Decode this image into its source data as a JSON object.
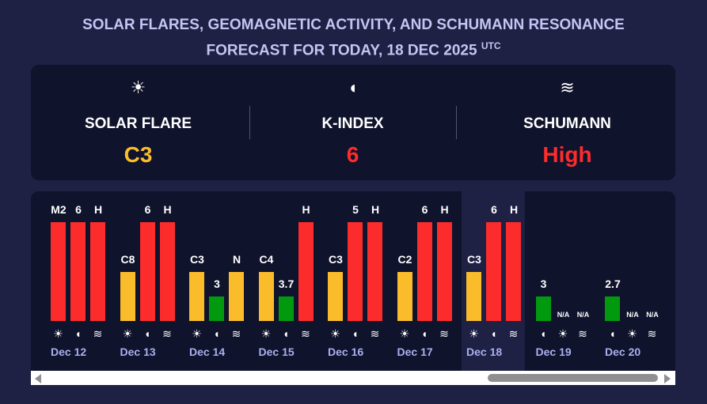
{
  "header": {
    "title_line1": "SOLAR FLARES, GEOMAGNETIC ACTIVITY, AND SCHUMANN RESONANCE",
    "title_line2": "FORECAST FOR TODAY, 18 DEC 2025",
    "title_sup": "UTC"
  },
  "summary": [
    {
      "icon": "sun-icon",
      "glyph": "☀",
      "label": "SOLAR FLARE",
      "value": "C3",
      "color": "#fbbc2c"
    },
    {
      "icon": "magnet-icon",
      "glyph": "◖",
      "label": "K-INDEX",
      "value": "6",
      "color": "#fd2c2c"
    },
    {
      "icon": "schumann-waves-icon",
      "glyph": "≋",
      "label": "SCHUMANN",
      "value": "High",
      "color": "#fd2c2c"
    }
  ],
  "colors": {
    "high": "#fd2c2c",
    "medium": "#fbbc2c",
    "low": "#019a0f"
  },
  "days": [
    {
      "date": "",
      "highlight": false,
      "bars": [
        {
          "type": "schumann",
          "label": "H",
          "level": "high"
        }
      ]
    },
    {
      "date": "Dec 12",
      "bars": [
        {
          "type": "flare",
          "label": "M2",
          "level": "high"
        },
        {
          "type": "k",
          "label": "6",
          "level": "high"
        },
        {
          "type": "schumann",
          "label": "H",
          "level": "high"
        }
      ]
    },
    {
      "date": "Dec 13",
      "bars": [
        {
          "type": "flare",
          "label": "C8",
          "level": "medium"
        },
        {
          "type": "k",
          "label": "6",
          "level": "high"
        },
        {
          "type": "schumann",
          "label": "H",
          "level": "high"
        }
      ]
    },
    {
      "date": "Dec 14",
      "bars": [
        {
          "type": "flare",
          "label": "C3",
          "level": "medium"
        },
        {
          "type": "k",
          "label": "3",
          "level": "low"
        },
        {
          "type": "schumann",
          "label": "N",
          "level": "medium"
        }
      ]
    },
    {
      "date": "Dec 15",
      "bars": [
        {
          "type": "flare",
          "label": "C4",
          "level": "medium"
        },
        {
          "type": "k",
          "label": "3.7",
          "level": "low"
        },
        {
          "type": "schumann",
          "label": "H",
          "level": "high"
        }
      ]
    },
    {
      "date": "Dec 16",
      "bars": [
        {
          "type": "flare",
          "label": "C3",
          "level": "medium"
        },
        {
          "type": "k",
          "label": "5",
          "level": "high"
        },
        {
          "type": "schumann",
          "label": "H",
          "level": "high"
        }
      ]
    },
    {
      "date": "Dec 17",
      "bars": [
        {
          "type": "flare",
          "label": "C2",
          "level": "medium"
        },
        {
          "type": "k",
          "label": "6",
          "level": "high"
        },
        {
          "type": "schumann",
          "label": "H",
          "level": "high"
        }
      ]
    },
    {
      "date": "Dec 18",
      "highlight": true,
      "bars": [
        {
          "type": "flare",
          "label": "C3",
          "level": "medium"
        },
        {
          "type": "k",
          "label": "6",
          "level": "high"
        },
        {
          "type": "schumann",
          "label": "H",
          "level": "high"
        }
      ]
    },
    {
      "date": "Dec 19",
      "bars": [
        {
          "type": "k",
          "label": "3",
          "level": "low"
        },
        {
          "type": "flare",
          "label": "N/A",
          "level": "na"
        },
        {
          "type": "schumann",
          "label": "N/A",
          "level": "na"
        }
      ]
    },
    {
      "date": "Dec 20",
      "bars": [
        {
          "type": "k",
          "label": "2.7",
          "level": "low"
        },
        {
          "type": "flare",
          "label": "N/A",
          "level": "na"
        },
        {
          "type": "schumann",
          "label": "N/A",
          "level": "na"
        }
      ]
    }
  ]
}
